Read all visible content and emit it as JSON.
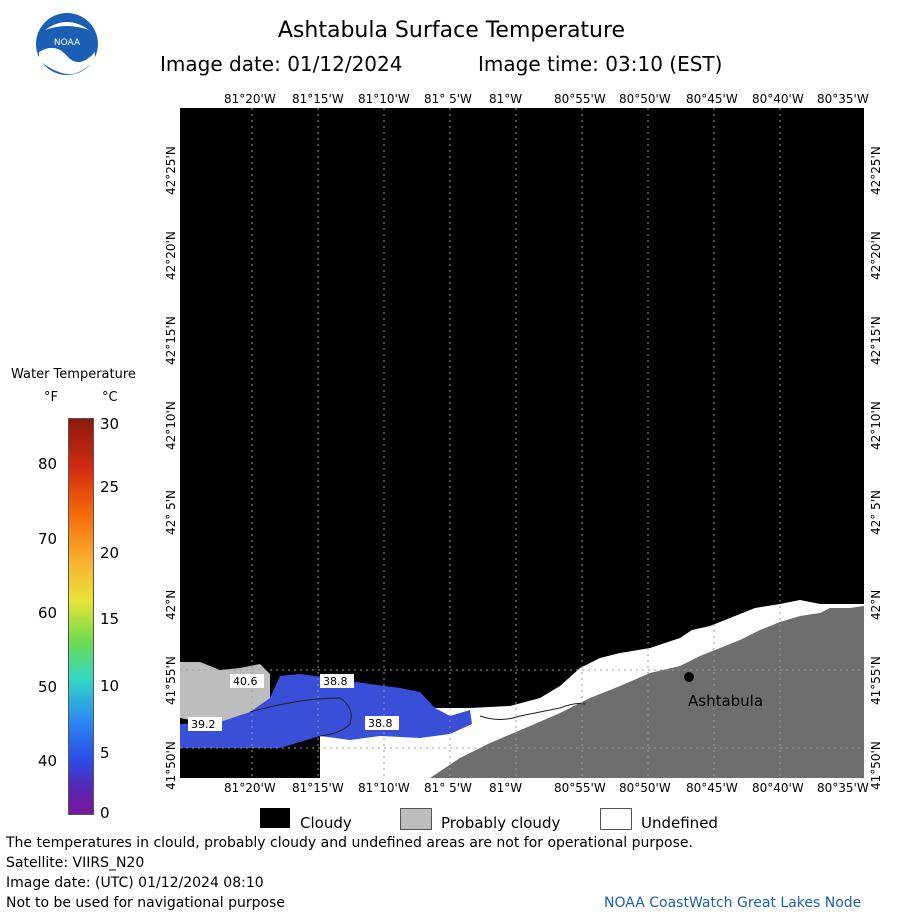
{
  "header": {
    "title": "Ashtabula Surface Temperature",
    "image_date": "Image date: 01/12/2024",
    "image_time": "Image time: 03:10 (EST)"
  },
  "map": {
    "lon_labels_top": [
      "81°20'W",
      "81°15'W",
      "81°10'W",
      "81° 5'W",
      "81°W",
      "80°55'W",
      "80°50'W",
      "80°45'W",
      "80°40'W",
      "80°35'W"
    ],
    "lon_labels_bottom": [
      "81°20'W",
      "81°15'W",
      "81°10'W",
      "81° 5'W",
      "81°W",
      "80°55'W",
      "80°50'W",
      "80°45'W",
      "80°40'W",
      "80°35'W"
    ],
    "lat_labels": [
      "42°25'N",
      "42°20'N",
      "42°15'N",
      "42°10'N",
      "42° 5'N",
      "42°N",
      "41°55'N",
      "41°50'N"
    ],
    "city_label": "Ashtabula",
    "contour_labels": [
      "40.6",
      "38.8",
      "38.8",
      "39.2"
    ],
    "colors": {
      "cloud": "#000000",
      "land": "#6e6e6e",
      "undefined": "#ffffff",
      "probably_cloudy": "#bdbdbd",
      "water_cold": "#3a4fd8"
    }
  },
  "legend_scale": {
    "title": "Water Temperature",
    "f_unit": "°F",
    "c_unit": "°C",
    "f_ticks": [
      "80",
      "70",
      "60",
      "50",
      "40"
    ],
    "c_ticks": [
      "30",
      "25",
      "20",
      "15",
      "10",
      "5",
      "0"
    ]
  },
  "key": {
    "cloudy": "Cloudy",
    "probably_cloudy": "Probably cloudy",
    "undefined": "Undefined"
  },
  "footer": {
    "disclaimer": "The temperatures in clould, probably cloudy and undefined areas are not for operational purpose.",
    "satellite": "Satellite: VIIRS_N20",
    "utc_date": "Image date: (UTC) 01/12/2024  08:10",
    "navigation": "Not to be used for navigational purpose",
    "credit": "NOAA CoastWatch Great Lakes Node"
  }
}
